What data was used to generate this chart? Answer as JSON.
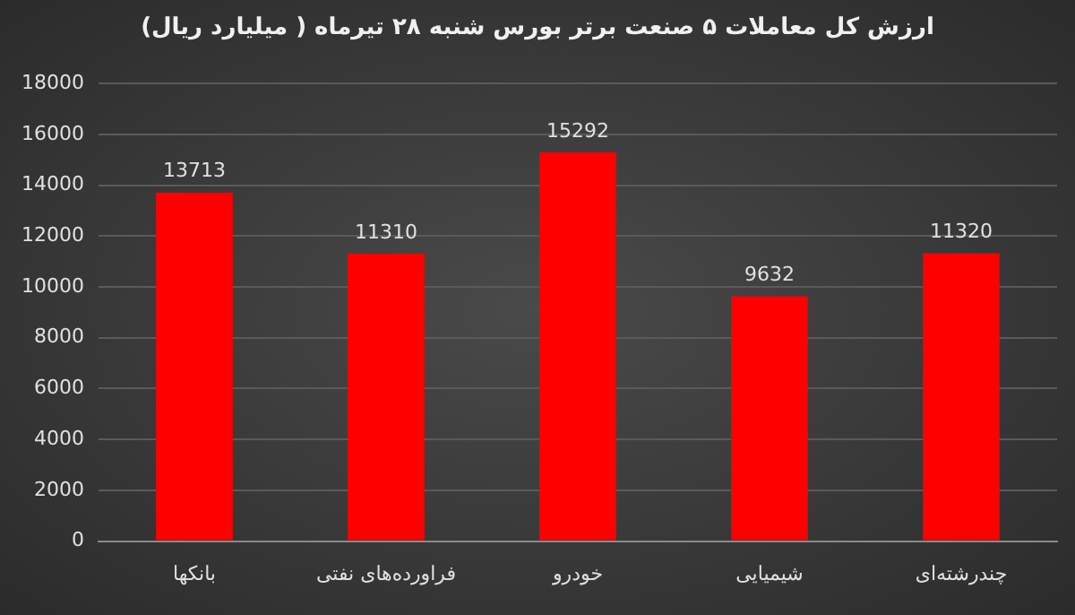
{
  "chart_data": {
    "type": "bar",
    "title": "ارزش کل معاملات ۵ صنعت برتر بورس شنبه ۲۸ تیرماه ( میلیارد ریال)",
    "categories": [
      "بانکها",
      "فراورده‌های نفتی",
      "خودرو",
      "شیمیایی",
      "چندرشته‌ای"
    ],
    "values": [
      13713,
      11310,
      15292,
      9632,
      11320
    ],
    "color": "#ff0000",
    "ylim": [
      0,
      18000
    ],
    "yticks": [
      0,
      2000,
      4000,
      6000,
      8000,
      10000,
      12000,
      14000,
      16000,
      18000
    ],
    "grid": "y",
    "data_labels": true,
    "legend": false
  }
}
